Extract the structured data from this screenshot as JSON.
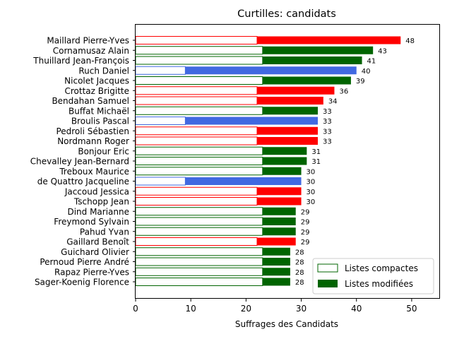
{
  "chart_data": {
    "type": "bar",
    "orientation": "horizontal",
    "stacked": true,
    "title": "Curtilles: candidats",
    "xlabel": "Suffrages des Candidats",
    "ylabel": "",
    "xlim": [
      0,
      55
    ],
    "xticks": [
      0,
      10,
      20,
      30,
      40,
      50
    ],
    "grid": false,
    "legend_position": "lower-right",
    "categories": [
      "Maillard Pierre-Yves",
      "Cornamusaz Alain",
      "Thuillard Jean-François",
      "Ruch Daniel",
      "Nicolet Jacques",
      "Crottaz Brigitte",
      "Bendahan Samuel",
      "Buffat Michaël",
      "Broulis Pascal",
      "Pedroli Sébastien",
      "Nordmann Roger",
      "Bonjour Eric",
      "Chevalley Jean-Bernard",
      "Treboux Maurice",
      "de Quattro Jacqueline",
      "Jaccoud Jessica",
      "Tschopp Jean",
      "Dind Marianne",
      "Freymond Sylvain",
      "Pahud Yvan",
      "Gaillard Benoît",
      "Guichard Olivier",
      "Pernoud Pierre André",
      "Rapaz Pierre-Yves",
      "Sager-Koenig Florence"
    ],
    "party_colors": [
      "#ff0000",
      "#006400",
      "#006400",
      "#4169e1",
      "#006400",
      "#ff0000",
      "#ff0000",
      "#006400",
      "#4169e1",
      "#ff0000",
      "#ff0000",
      "#006400",
      "#006400",
      "#006400",
      "#4169e1",
      "#ff0000",
      "#ff0000",
      "#006400",
      "#006400",
      "#006400",
      "#ff0000",
      "#006400",
      "#006400",
      "#006400",
      "#006400"
    ],
    "series": [
      {
        "name": "Listes compactes",
        "style": "outline",
        "values": [
          22,
          23,
          23,
          9,
          23,
          22,
          22,
          23,
          9,
          22,
          22,
          23,
          23,
          23,
          9,
          22,
          22,
          23,
          23,
          23,
          22,
          23,
          23,
          23,
          23
        ]
      },
      {
        "name": "Listes modifiées",
        "style": "filled",
        "values": [
          26,
          20,
          18,
          31,
          16,
          14,
          12,
          10,
          24,
          11,
          11,
          8,
          8,
          7,
          21,
          8,
          8,
          6,
          6,
          6,
          7,
          5,
          5,
          5,
          5
        ]
      }
    ],
    "totals": [
      48,
      43,
      41,
      40,
      39,
      36,
      34,
      33,
      33,
      33,
      33,
      31,
      31,
      30,
      30,
      30,
      30,
      29,
      29,
      29,
      29,
      28,
      28,
      28,
      28
    ],
    "legend_colors": {
      "compact_edge": "#006400",
      "modified_fill": "#006400"
    }
  }
}
